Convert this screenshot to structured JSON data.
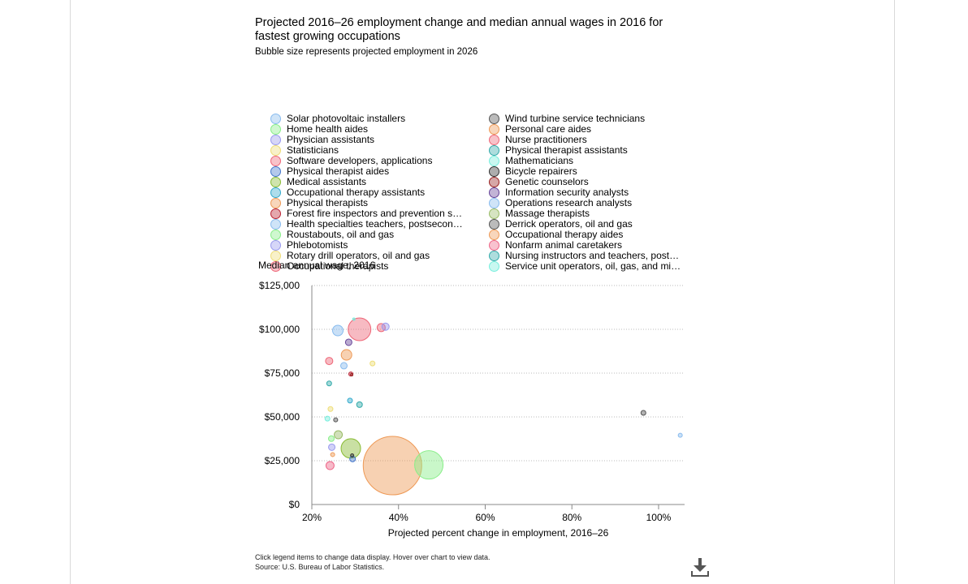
{
  "chart_data": {
    "type": "scatter",
    "title": "Projected 2016–26 employment change and median annual wages in 2016 for fastest growing occupations",
    "subtitle": "Bubble size represents projected employment in 2026",
    "ylabel": "Median annual wage, 2016",
    "xlabel": "Projected percent change in employment, 2016–26",
    "xlim": [
      20,
      106
    ],
    "ylim": [
      0,
      125000
    ],
    "x_ticks": [
      20,
      40,
      60,
      80,
      100
    ],
    "x_tick_labels": [
      "20%",
      "40%",
      "60%",
      "80%",
      "100%"
    ],
    "y_ticks": [
      0,
      25000,
      50000,
      75000,
      100000,
      125000
    ],
    "y_tick_labels": [
      "$0",
      "$25,000",
      "$50,000",
      "$75,000",
      "$100,000",
      "$125,000"
    ],
    "grid": "horizontal dotted",
    "legend_position": "top",
    "series": [
      {
        "name": "Solar photovoltaic installers",
        "x": 105,
        "y": 39500,
        "size": 2.5,
        "color": "#88bbee"
      },
      {
        "name": "Home health aides",
        "x": 47,
        "y": 22600,
        "size": 17.5,
        "color": "#88ee88"
      },
      {
        "name": "Physician assistants",
        "x": 37,
        "y": 101500,
        "size": 4.5,
        "color": "#9999ee"
      },
      {
        "name": "Statisticians",
        "x": 34,
        "y": 80500,
        "size": 3,
        "color": "#eedd77"
      },
      {
        "name": "Software developers, applications",
        "x": 31,
        "y": 100000,
        "size": 14,
        "color": "#ee6677"
      },
      {
        "name": "Physical therapist aides",
        "x": 29.4,
        "y": 26000,
        "size": 3.5,
        "color": "#4477cc"
      },
      {
        "name": "Medical assistants",
        "x": 29,
        "y": 32000,
        "size": 12,
        "color": "#88bb33"
      },
      {
        "name": "Occupational therapy assistants",
        "x": 28.8,
        "y": 59300,
        "size": 3,
        "color": "#33aacc"
      },
      {
        "name": "Physical therapists",
        "x": 28,
        "y": 85400,
        "size": 6.5,
        "color": "#ee9955"
      },
      {
        "name": "Forest fire inspectors and prevention specialists",
        "x": 29,
        "y": 74500,
        "size": 2.5,
        "color": "#bb2233"
      },
      {
        "name": "Health specialties teachers, postsecondary",
        "x": 26,
        "y": 99300,
        "size": 6.5,
        "color": "#88bbee"
      },
      {
        "name": "Roustabouts, oil and gas",
        "x": 24.5,
        "y": 37600,
        "size": 3.5,
        "color": "#88ee88"
      },
      {
        "name": "Phlebotomists",
        "x": 24.6,
        "y": 32700,
        "size": 4,
        "color": "#9999ee"
      },
      {
        "name": "Rotary drill operators, oil and gas",
        "x": 24.3,
        "y": 54500,
        "size": 3,
        "color": "#eedd77"
      },
      {
        "name": "Occupational therapists",
        "x": 24,
        "y": 81900,
        "size": 4.5,
        "color": "#ee6677"
      },
      {
        "name": "Wind turbine service technicians",
        "x": 96.5,
        "y": 52300,
        "size": 3,
        "color": "#555555"
      },
      {
        "name": "Personal care aides",
        "x": 38.6,
        "y": 22200,
        "size": 36,
        "color": "#ee9955"
      },
      {
        "name": "Nurse practitioners",
        "x": 36,
        "y": 101000,
        "size": 5,
        "color": "#ee6677"
      },
      {
        "name": "Physical therapist assistants",
        "x": 31,
        "y": 57000,
        "size": 3.5,
        "color": "#33aaaa"
      },
      {
        "name": "Mathematicians",
        "x": 29.7,
        "y": 105800,
        "size": 1.5,
        "color": "#77eedd"
      },
      {
        "name": "Bicycle repairers",
        "x": 29.3,
        "y": 28000,
        "size": 2,
        "color": "#333333"
      },
      {
        "name": "Genetic counselors",
        "x": 29.2,
        "y": 74100,
        "size": 1.5,
        "color": "#992222"
      },
      {
        "name": "Information security analysts",
        "x": 28.5,
        "y": 92600,
        "size": 4,
        "color": "#664499"
      },
      {
        "name": "Operations research analysts",
        "x": 27.4,
        "y": 79200,
        "size": 4,
        "color": "#88bbee"
      },
      {
        "name": "Massage therapists",
        "x": 26.1,
        "y": 39800,
        "size": 5,
        "color": "#99bb66"
      },
      {
        "name": "Derrick operators, oil and gas",
        "x": 25.5,
        "y": 48300,
        "size": 2.5,
        "color": "#555555"
      },
      {
        "name": "Occupational therapy aides",
        "x": 24.8,
        "y": 28500,
        "size": 2.5,
        "color": "#ee9955"
      },
      {
        "name": "Nonfarm animal caretakers",
        "x": 24.2,
        "y": 22200,
        "size": 5,
        "color": "#ee6688"
      },
      {
        "name": "Nursing instructors and teachers, postsecondary",
        "x": 24,
        "y": 69100,
        "size": 3,
        "color": "#33aaaa"
      },
      {
        "name": "Service unit operators, oil, gas, and mining",
        "x": 23.6,
        "y": 49000,
        "size": 3,
        "color": "#77eedd"
      }
    ]
  },
  "legend_display": [
    "Solar photovoltaic installers",
    "Home health aides",
    "Physician assistants",
    "Statisticians",
    "Software developers, applications",
    "Physical therapist aides",
    "Medical assistants",
    "Occupational therapy assistants",
    "Physical therapists",
    "Forest fire inspectors and prevention s…",
    "Health specialties teachers, postsecon…",
    "Roustabouts, oil and gas",
    "Phlebotomists",
    "Rotary drill operators, oil and gas",
    "Occupational therapists",
    "Wind turbine service technicians",
    "Personal care aides",
    "Nurse practitioners",
    "Physical therapist assistants",
    "Mathematicians",
    "Bicycle repairers",
    "Genetic counselors",
    "Information security analysts",
    "Operations research analysts",
    "Massage therapists",
    "Derrick operators, oil and gas",
    "Occupational therapy aides",
    "Nonfarm animal caretakers",
    "Nursing instructors and teachers, post…",
    "Service unit operators, oil, gas, and mi…"
  ],
  "footnote": {
    "line1": "Click legend items to change data display. Hover over chart to view data.",
    "line2": "Source: U.S. Bureau of Labor Statistics."
  },
  "download_icon": "download-icon"
}
